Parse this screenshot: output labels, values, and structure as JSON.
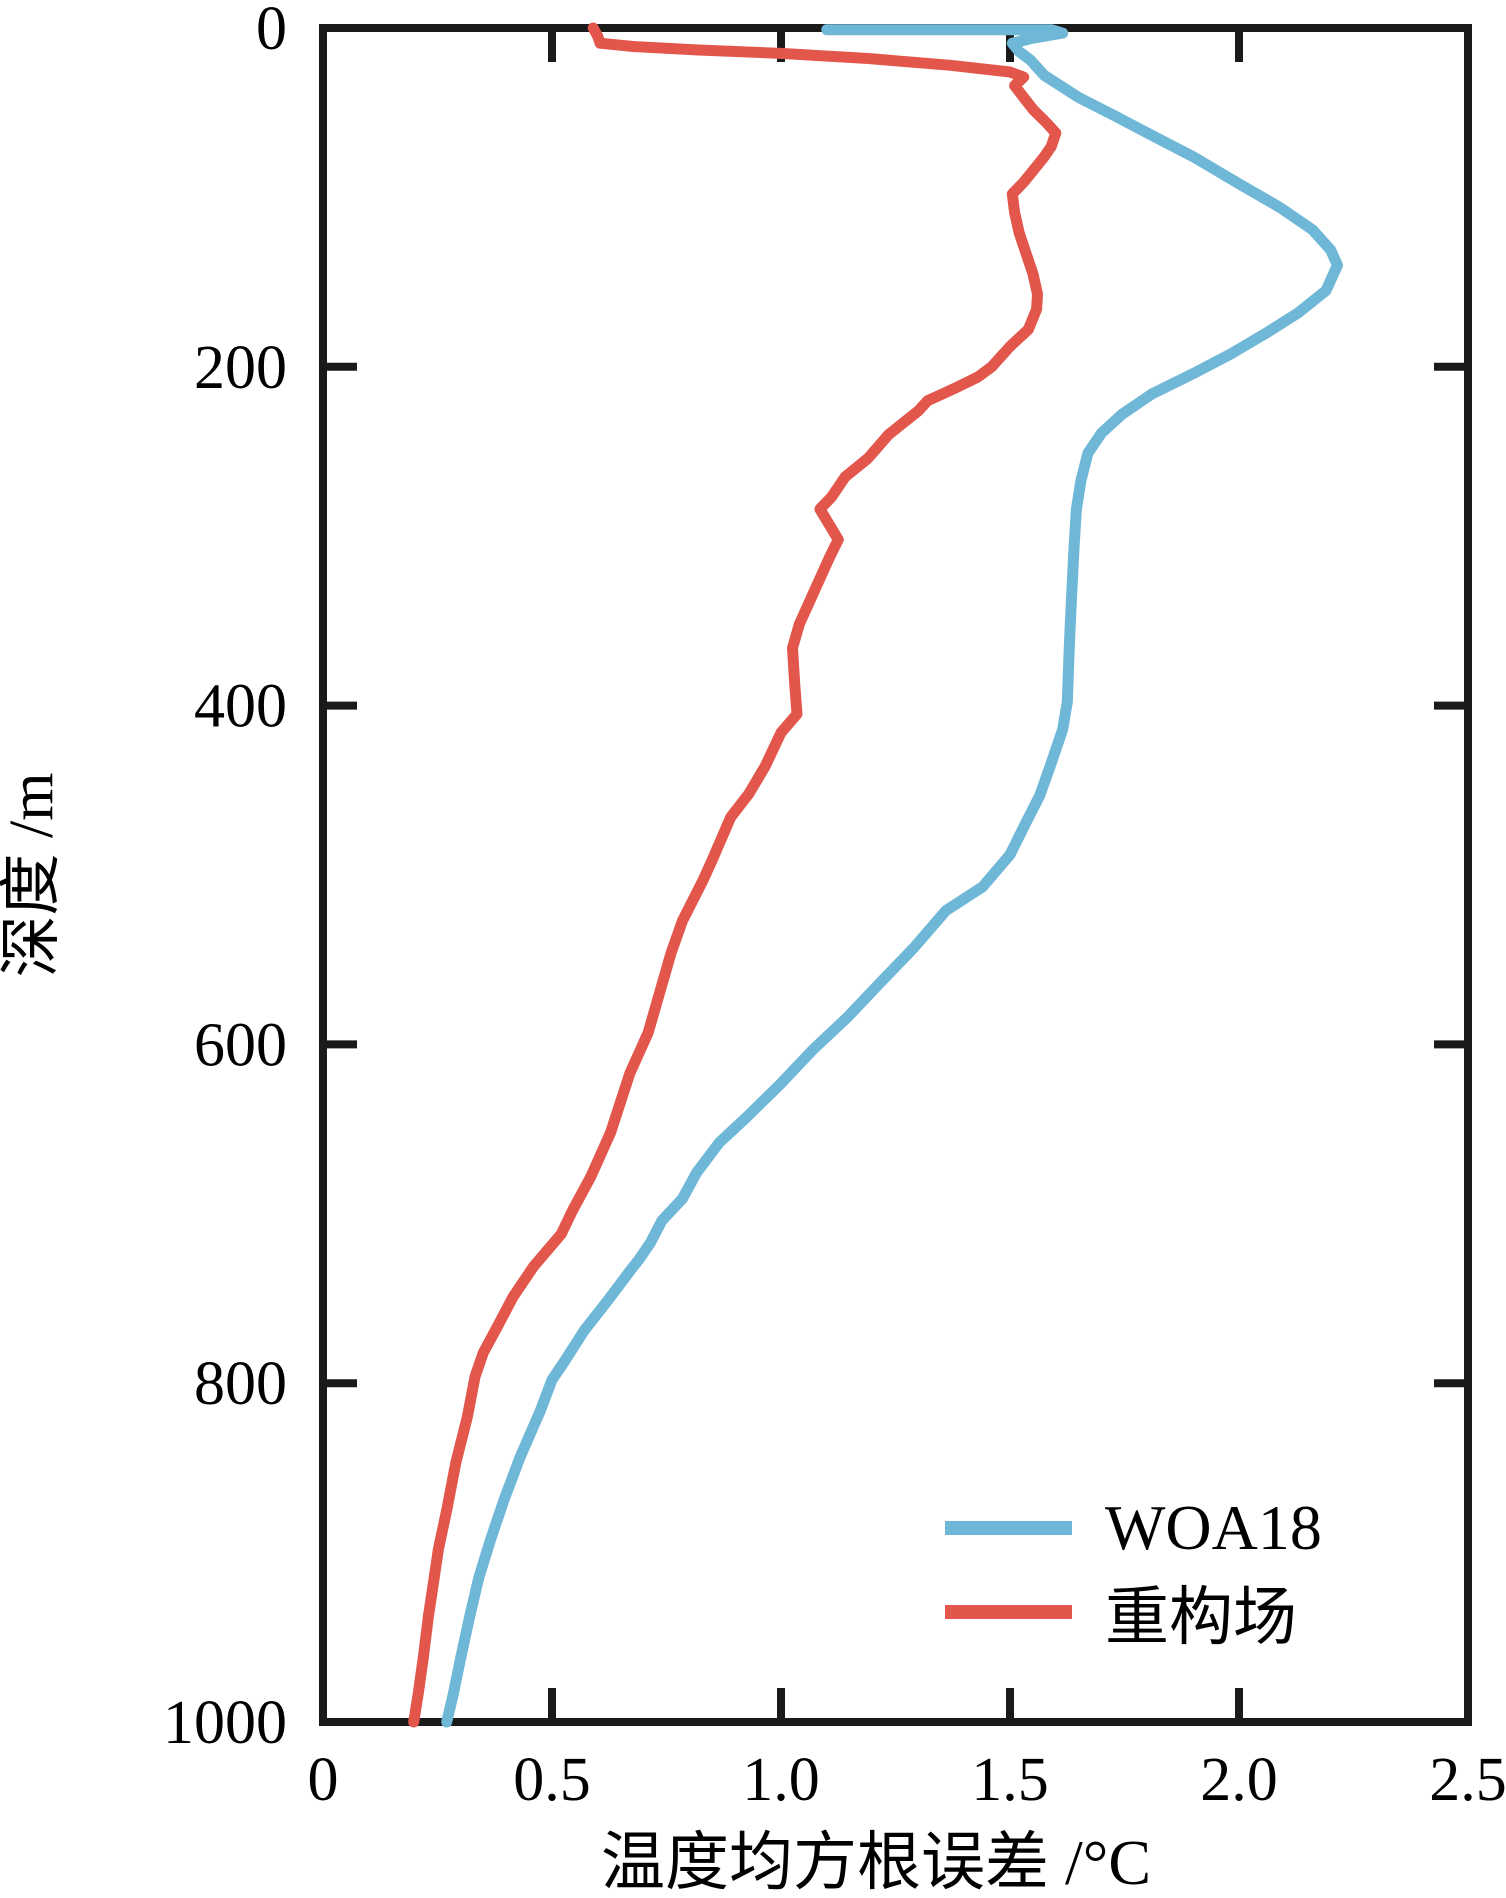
{
  "page": {
    "background": "#ffffff"
  },
  "chart_data": {
    "type": "line",
    "title": "",
    "xlabel": "温度均方根误差 /°C",
    "ylabel": "深度 /m",
    "xlim": [
      0,
      2.5
    ],
    "ylim": [
      0,
      1000
    ],
    "y_axis_inverted": true,
    "grid": false,
    "axis_color": "#1a1a1a",
    "tick_label_color": "#000000",
    "legend_position": "lower-right",
    "x_ticks": {
      "values": [
        0,
        0.5,
        1.0,
        1.5,
        2.0,
        2.5
      ],
      "labels": [
        "0",
        "0.5",
        "1.0",
        "1.5",
        "2.0",
        "2.5"
      ]
    },
    "y_ticks": {
      "values": [
        0,
        200,
        400,
        600,
        800,
        1000
      ],
      "labels": [
        "0",
        "200",
        "400",
        "600",
        "800",
        "1000"
      ]
    },
    "units": {
      "x": "rmse_degC",
      "y": "depth_m"
    },
    "series": [
      {
        "name": "WOA18",
        "color": "#6fb7d6",
        "points": [
          [
            1.1,
            1
          ],
          [
            1.59,
            1
          ],
          [
            1.615,
            3
          ],
          [
            1.55,
            6
          ],
          [
            1.505,
            9
          ],
          [
            1.52,
            14
          ],
          [
            1.545,
            19
          ],
          [
            1.575,
            28
          ],
          [
            1.65,
            41
          ],
          [
            1.73,
            52
          ],
          [
            1.8,
            62
          ],
          [
            1.9,
            76
          ],
          [
            2.0,
            92
          ],
          [
            2.09,
            106
          ],
          [
            2.16,
            119
          ],
          [
            2.2,
            131
          ],
          [
            2.215,
            140
          ],
          [
            2.19,
            155
          ],
          [
            2.13,
            168
          ],
          [
            2.06,
            180
          ],
          [
            1.985,
            192
          ],
          [
            1.9,
            204
          ],
          [
            1.81,
            216
          ],
          [
            1.745,
            228
          ],
          [
            1.7,
            239
          ],
          [
            1.67,
            251
          ],
          [
            1.655,
            267
          ],
          [
            1.645,
            284
          ],
          [
            1.64,
            306
          ],
          [
            1.635,
            333
          ],
          [
            1.63,
            362
          ],
          [
            1.625,
            398
          ],
          [
            1.615,
            414
          ],
          [
            1.59,
            434
          ],
          [
            1.565,
            453
          ],
          [
            1.535,
            469
          ],
          [
            1.5,
            488
          ],
          [
            1.44,
            507
          ],
          [
            1.36,
            521
          ],
          [
            1.29,
            543
          ],
          [
            1.215,
            564
          ],
          [
            1.145,
            584
          ],
          [
            1.07,
            603
          ],
          [
            1.0,
            623
          ],
          [
            0.925,
            643
          ],
          [
            0.865,
            658
          ],
          [
            0.815,
            676
          ],
          [
            0.785,
            691
          ],
          [
            0.74,
            704
          ],
          [
            0.715,
            717
          ],
          [
            0.69,
            727
          ],
          [
            0.675,
            732
          ],
          [
            0.625,
            750
          ],
          [
            0.57,
            769
          ],
          [
            0.525,
            788
          ],
          [
            0.5,
            798
          ],
          [
            0.475,
            816
          ],
          [
            0.43,
            844
          ],
          [
            0.395,
            869
          ],
          [
            0.365,
            893
          ],
          [
            0.34,
            915
          ],
          [
            0.32,
            938
          ],
          [
            0.3,
            963
          ],
          [
            0.285,
            983
          ],
          [
            0.27,
            1000
          ]
        ]
      },
      {
        "name": "重构场",
        "color": "#e2564c",
        "points": [
          [
            0.59,
            0
          ],
          [
            0.6,
            5
          ],
          [
            0.605,
            9
          ],
          [
            0.68,
            11
          ],
          [
            0.82,
            13
          ],
          [
            1.0,
            15
          ],
          [
            1.19,
            18
          ],
          [
            1.37,
            22
          ],
          [
            1.5,
            26
          ],
          [
            1.53,
            29
          ],
          [
            1.51,
            34
          ],
          [
            1.53,
            41
          ],
          [
            1.55,
            48
          ],
          [
            1.58,
            56
          ],
          [
            1.6,
            62
          ],
          [
            1.59,
            70
          ],
          [
            1.575,
            76
          ],
          [
            1.53,
            91
          ],
          [
            1.505,
            98
          ],
          [
            1.51,
            109
          ],
          [
            1.52,
            121
          ],
          [
            1.535,
            133
          ],
          [
            1.55,
            145
          ],
          [
            1.56,
            157
          ],
          [
            1.558,
            166
          ],
          [
            1.54,
            178
          ],
          [
            1.5,
            188
          ],
          [
            1.46,
            200
          ],
          [
            1.43,
            206
          ],
          [
            1.385,
            212
          ],
          [
            1.32,
            220
          ],
          [
            1.3,
            226
          ],
          [
            1.235,
            240
          ],
          [
            1.19,
            254
          ],
          [
            1.14,
            265
          ],
          [
            1.11,
            277
          ],
          [
            1.085,
            284
          ],
          [
            1.125,
            302
          ],
          [
            1.105,
            313
          ],
          [
            1.04,
            352
          ],
          [
            1.025,
            366
          ],
          [
            1.03,
            387
          ],
          [
            1.035,
            405
          ],
          [
            1.0,
            416
          ],
          [
            0.965,
            436
          ],
          [
            0.93,
            452
          ],
          [
            0.89,
            466
          ],
          [
            0.85,
            491
          ],
          [
            0.83,
            503
          ],
          [
            0.785,
            527
          ],
          [
            0.76,
            546
          ],
          [
            0.71,
            593
          ],
          [
            0.67,
            617
          ],
          [
            0.628,
            652
          ],
          [
            0.585,
            678
          ],
          [
            0.545,
            698
          ],
          [
            0.52,
            712
          ],
          [
            0.46,
            731
          ],
          [
            0.415,
            749
          ],
          [
            0.38,
            767
          ],
          [
            0.35,
            782
          ],
          [
            0.332,
            796
          ],
          [
            0.315,
            820
          ],
          [
            0.29,
            847
          ],
          [
            0.27,
            875
          ],
          [
            0.252,
            898
          ],
          [
            0.241,
            918
          ],
          [
            0.23,
            938
          ],
          [
            0.219,
            962
          ],
          [
            0.208,
            983
          ],
          [
            0.198,
            1000
          ]
        ]
      }
    ]
  }
}
